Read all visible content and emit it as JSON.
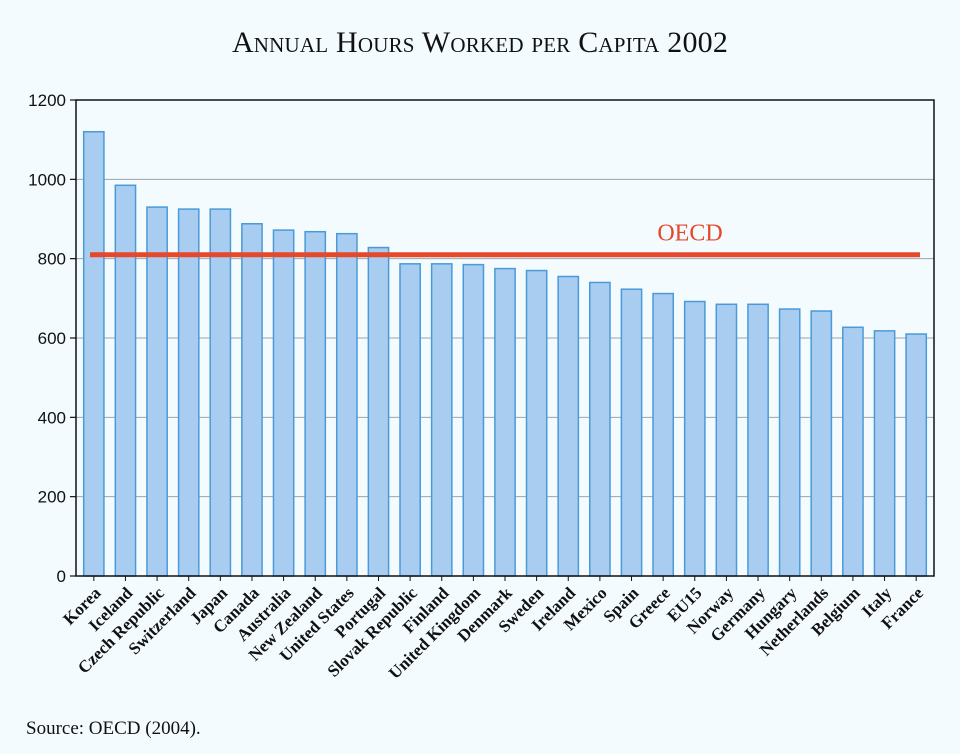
{
  "chart_data": {
    "type": "bar",
    "title": "Annual Hours Worked per Capita 2002",
    "categories": [
      "Korea",
      "Iceland",
      "Czech Republic",
      "Switzerland",
      "Japan",
      "Canada",
      "Australia",
      "New Zealand",
      "United States",
      "Portugal",
      "Slovak Republic",
      "Finland",
      "United Kingdom",
      "Denmark",
      "Sweden",
      "Ireland",
      "Mexico",
      "Spain",
      "Greece",
      "EU15",
      "Norway",
      "Germany",
      "Hungary",
      "Netherlands",
      "Belgium",
      "Italy",
      "France"
    ],
    "values": [
      1120,
      985,
      930,
      925,
      925,
      888,
      872,
      868,
      863,
      828,
      787,
      787,
      785,
      775,
      770,
      755,
      740,
      723,
      712,
      692,
      685,
      685,
      673,
      668,
      627,
      618,
      610
    ],
    "yticks": [
      0,
      200,
      400,
      600,
      800,
      1000,
      1200
    ],
    "ylim": [
      0,
      1200
    ],
    "grid": true,
    "reference_line": {
      "label": "OECD",
      "value": 810,
      "color": "#e5482a"
    },
    "bar_color": "#a9cdf0",
    "bar_edge_color": "#4a9ad8",
    "xlabel": "",
    "ylabel": ""
  },
  "source_note": "Source: OECD (2004)."
}
